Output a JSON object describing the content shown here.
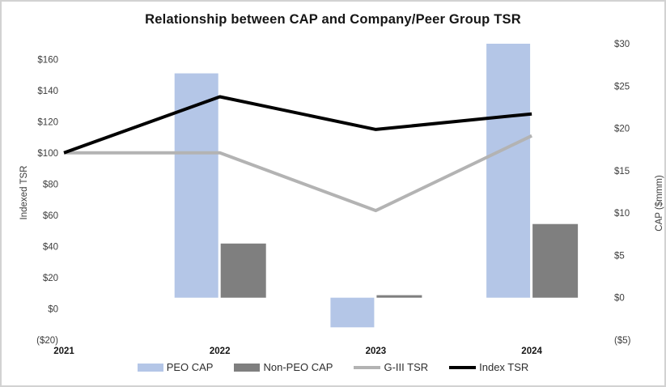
{
  "chart_data": {
    "type": "combo",
    "title": "Relationship between CAP and Company/Peer Group TSR",
    "categories": [
      "2021",
      "2022",
      "2023",
      "2024"
    ],
    "series": [
      {
        "name": "PEO CAP",
        "type": "bar",
        "axis": "right",
        "color": "#b4c6e7",
        "values": [
          null,
          26.5,
          -3.5,
          30
        ]
      },
      {
        "name": "Non-PEO CAP",
        "type": "bar",
        "axis": "right",
        "color": "#7f7f7f",
        "values": [
          null,
          6.4,
          0.3,
          8.7
        ]
      },
      {
        "name": "G-III TSR",
        "type": "line",
        "axis": "left",
        "color": "#b3b3b3",
        "values": [
          100,
          100,
          63,
          111
        ]
      },
      {
        "name": "Index TSR",
        "type": "line",
        "axis": "left",
        "color": "#000000",
        "values": [
          100,
          136,
          115,
          125
        ]
      }
    ],
    "left_axis": {
      "label": "Indexed TSR",
      "min": -20,
      "max": 170,
      "ticks": [
        {
          "v": 160,
          "label": "$160"
        },
        {
          "v": 140,
          "label": "$140"
        },
        {
          "v": 120,
          "label": "$120"
        },
        {
          "v": 100,
          "label": "$100"
        },
        {
          "v": 80,
          "label": "$80"
        },
        {
          "v": 60,
          "label": "$60"
        },
        {
          "v": 40,
          "label": "$40"
        },
        {
          "v": 20,
          "label": "$20"
        },
        {
          "v": 0,
          "label": "$0"
        },
        {
          "v": -20,
          "label": "($20)"
        }
      ]
    },
    "right_axis": {
      "label": "CAP ($mmm)",
      "min": -5,
      "max": 30,
      "ticks": [
        {
          "v": 30,
          "label": "$30"
        },
        {
          "v": 25,
          "label": "$25"
        },
        {
          "v": 20,
          "label": "$20"
        },
        {
          "v": 15,
          "label": "$15"
        },
        {
          "v": 10,
          "label": "$10"
        },
        {
          "v": 5,
          "label": "$5"
        },
        {
          "v": 0,
          "label": "$0"
        },
        {
          "v": -5,
          "label": "($5)"
        }
      ]
    },
    "legend_position": "bottom",
    "gridlines": false
  }
}
